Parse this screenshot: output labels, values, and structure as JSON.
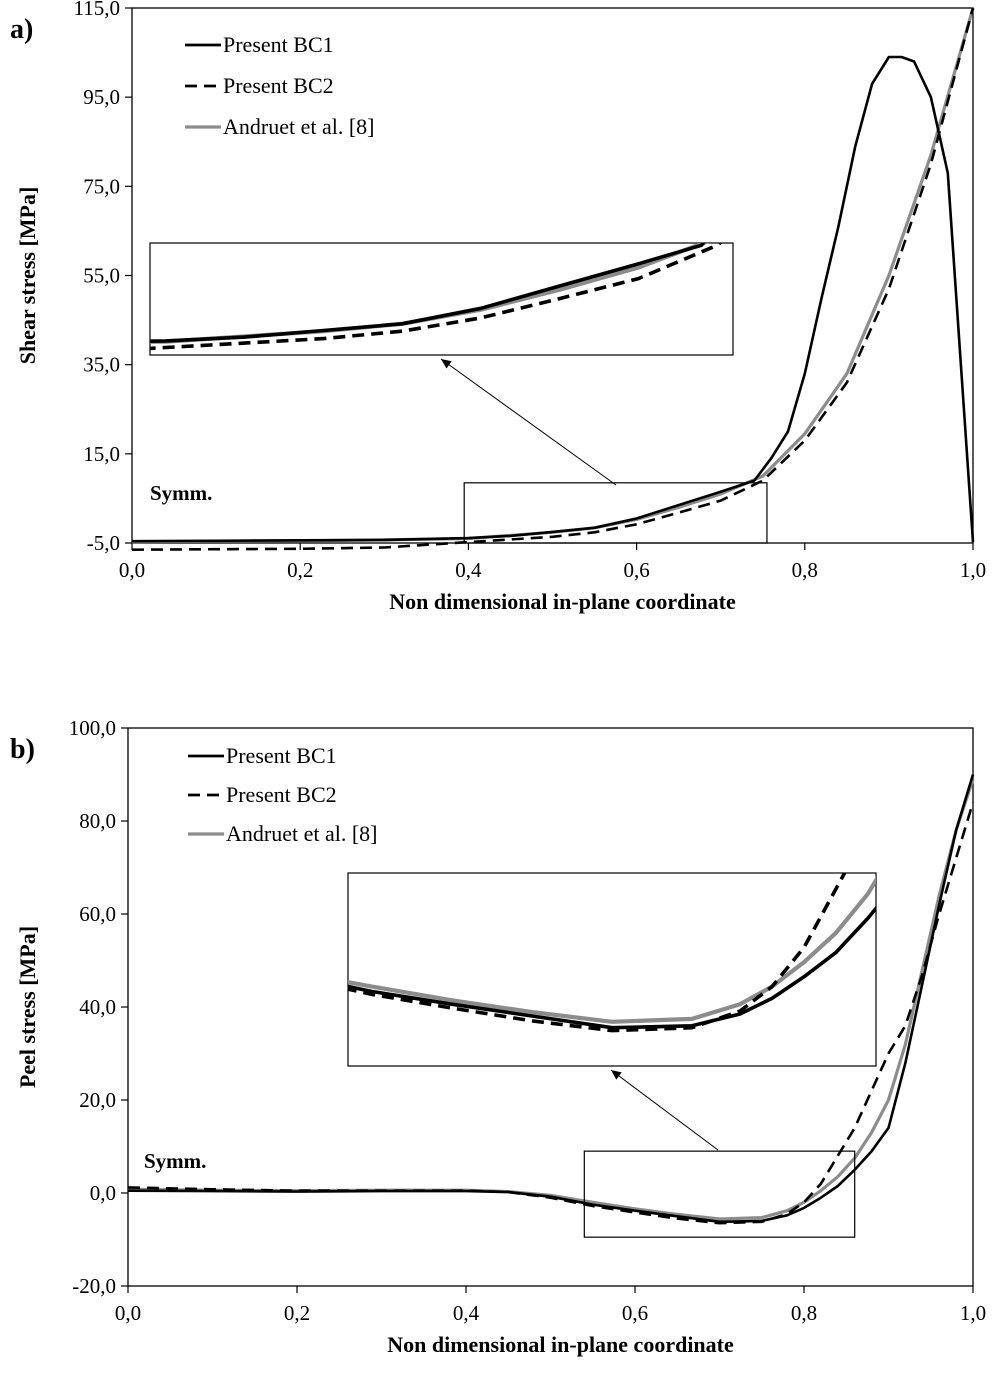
{
  "chart_data": [
    {
      "panel_label": "a)",
      "type": "line",
      "xlabel": "Non dimensional in-plane coordinate",
      "ylabel": "Shear stress [MPa]",
      "xlim": [
        0.0,
        1.0
      ],
      "ylim": [
        -5.0,
        115.0
      ],
      "x_ticks": [
        "0,0",
        "0,2",
        "0,4",
        "0,6",
        "0,8",
        "1,0"
      ],
      "y_ticks": [
        "-5,0",
        "15,0",
        "35,0",
        "55,0",
        "75,0",
        "95,0",
        "115,0"
      ],
      "legend_position": "top-left",
      "annotation": "Symm.",
      "zoom_region": {
        "x": [
          0.395,
          0.755
        ],
        "y": [
          -5.0,
          8.5
        ]
      },
      "series": [
        {
          "name": "Present BC1",
          "style": "solid-black",
          "x": [
            0.0,
            0.1,
            0.2,
            0.3,
            0.4,
            0.45,
            0.5,
            0.55,
            0.6,
            0.65,
            0.7,
            0.74,
            0.76,
            0.78,
            0.8,
            0.82,
            0.84,
            0.86,
            0.88,
            0.9,
            0.915,
            0.93,
            0.95,
            0.97,
            1.0
          ],
          "y": [
            -4.6,
            -4.5,
            -4.4,
            -4.3,
            -3.9,
            -3.4,
            -2.5,
            -1.6,
            0.5,
            3.5,
            6.5,
            9.0,
            14.0,
            20.0,
            33.0,
            50.0,
            66.0,
            84.0,
            98.0,
            104.0,
            104.0,
            103.0,
            95.0,
            78.0,
            -4.8
          ]
        },
        {
          "name": "Present BC2",
          "style": "dashed-black",
          "x": [
            0.0,
            0.1,
            0.2,
            0.3,
            0.4,
            0.5,
            0.55,
            0.6,
            0.65,
            0.7,
            0.75,
            0.8,
            0.85,
            0.9,
            0.95,
            1.0
          ],
          "y": [
            -6.5,
            -6.4,
            -6.3,
            -6.0,
            -4.8,
            -3.6,
            -2.6,
            -0.8,
            1.8,
            4.5,
            9.0,
            18.0,
            31.0,
            52.0,
            80.0,
            115.0
          ]
        },
        {
          "name": "Andruet et al. [8]",
          "style": "solid-gray",
          "x": [
            0.0,
            0.1,
            0.2,
            0.3,
            0.4,
            0.5,
            0.55,
            0.6,
            0.65,
            0.7,
            0.75,
            0.8,
            0.85,
            0.9,
            0.95,
            1.0
          ],
          "y": [
            -4.7,
            -4.6,
            -4.5,
            -4.3,
            -4.0,
            -2.6,
            -1.6,
            0.3,
            3.0,
            6.0,
            10.0,
            19.5,
            33.0,
            55.0,
            82.0,
            115.0
          ]
        }
      ]
    },
    {
      "panel_label": "b)",
      "type": "line",
      "xlabel": "Non dimensional in-plane coordinate",
      "ylabel": "Peel stress [MPa]",
      "xlim": [
        0.0,
        1.0
      ],
      "ylim": [
        -20.0,
        100.0
      ],
      "x_ticks": [
        "0,0",
        "0,2",
        "0,4",
        "0,6",
        "0,8",
        "1,0"
      ],
      "y_ticks": [
        "-20,0",
        "0,0",
        "20,0",
        "40,0",
        "60,0",
        "80,0",
        "100,0"
      ],
      "legend_position": "top-left",
      "annotation": "Symm.",
      "zoom_region": {
        "x": [
          0.54,
          0.86
        ],
        "y": [
          -9.5,
          9.0
        ]
      },
      "series": [
        {
          "name": "Present BC1",
          "style": "solid-black",
          "x": [
            0.0,
            0.1,
            0.2,
            0.3,
            0.4,
            0.45,
            0.5,
            0.55,
            0.6,
            0.65,
            0.7,
            0.75,
            0.78,
            0.8,
            0.82,
            0.84,
            0.86,
            0.88,
            0.9,
            0.92,
            0.94,
            0.96,
            0.98,
            1.0
          ],
          "y": [
            0.5,
            0.4,
            0.3,
            0.4,
            0.4,
            0.2,
            -0.8,
            -2.5,
            -3.8,
            -5.0,
            -6.2,
            -6.0,
            -4.8,
            -3.2,
            -1.0,
            1.5,
            5.0,
            9.0,
            14.0,
            28.0,
            45.0,
            62.0,
            78.0,
            90.0
          ]
        },
        {
          "name": "Present BC2",
          "style": "dashed-black",
          "x": [
            0.0,
            0.1,
            0.2,
            0.3,
            0.4,
            0.45,
            0.5,
            0.55,
            0.6,
            0.65,
            0.7,
            0.75,
            0.78,
            0.8,
            0.82,
            0.84,
            0.86,
            0.88,
            0.9,
            0.92,
            0.94,
            0.96,
            0.98,
            1.0
          ],
          "y": [
            1.2,
            0.8,
            0.5,
            0.5,
            0.5,
            0.2,
            -1.0,
            -2.8,
            -4.2,
            -5.5,
            -6.5,
            -6.2,
            -4.5,
            -2.0,
            2.0,
            8.0,
            14.0,
            22.0,
            30.0,
            36.0,
            47.0,
            60.0,
            72.0,
            84.0
          ]
        },
        {
          "name": "Andruet et al. [8]",
          "style": "solid-gray",
          "x": [
            0.0,
            0.1,
            0.2,
            0.3,
            0.4,
            0.45,
            0.5,
            0.55,
            0.6,
            0.65,
            0.7,
            0.75,
            0.78,
            0.8,
            0.82,
            0.84,
            0.86,
            0.88,
            0.9,
            0.92,
            0.94,
            0.96,
            0.98,
            1.0
          ],
          "y": [
            0.8,
            0.6,
            0.5,
            0.6,
            0.6,
            0.3,
            -0.5,
            -2.0,
            -3.4,
            -4.6,
            -5.6,
            -5.3,
            -3.8,
            -2.0,
            0.5,
            3.5,
            7.5,
            13.0,
            20.0,
            32.0,
            48.0,
            64.0,
            78.0,
            89.0
          ]
        }
      ]
    }
  ]
}
